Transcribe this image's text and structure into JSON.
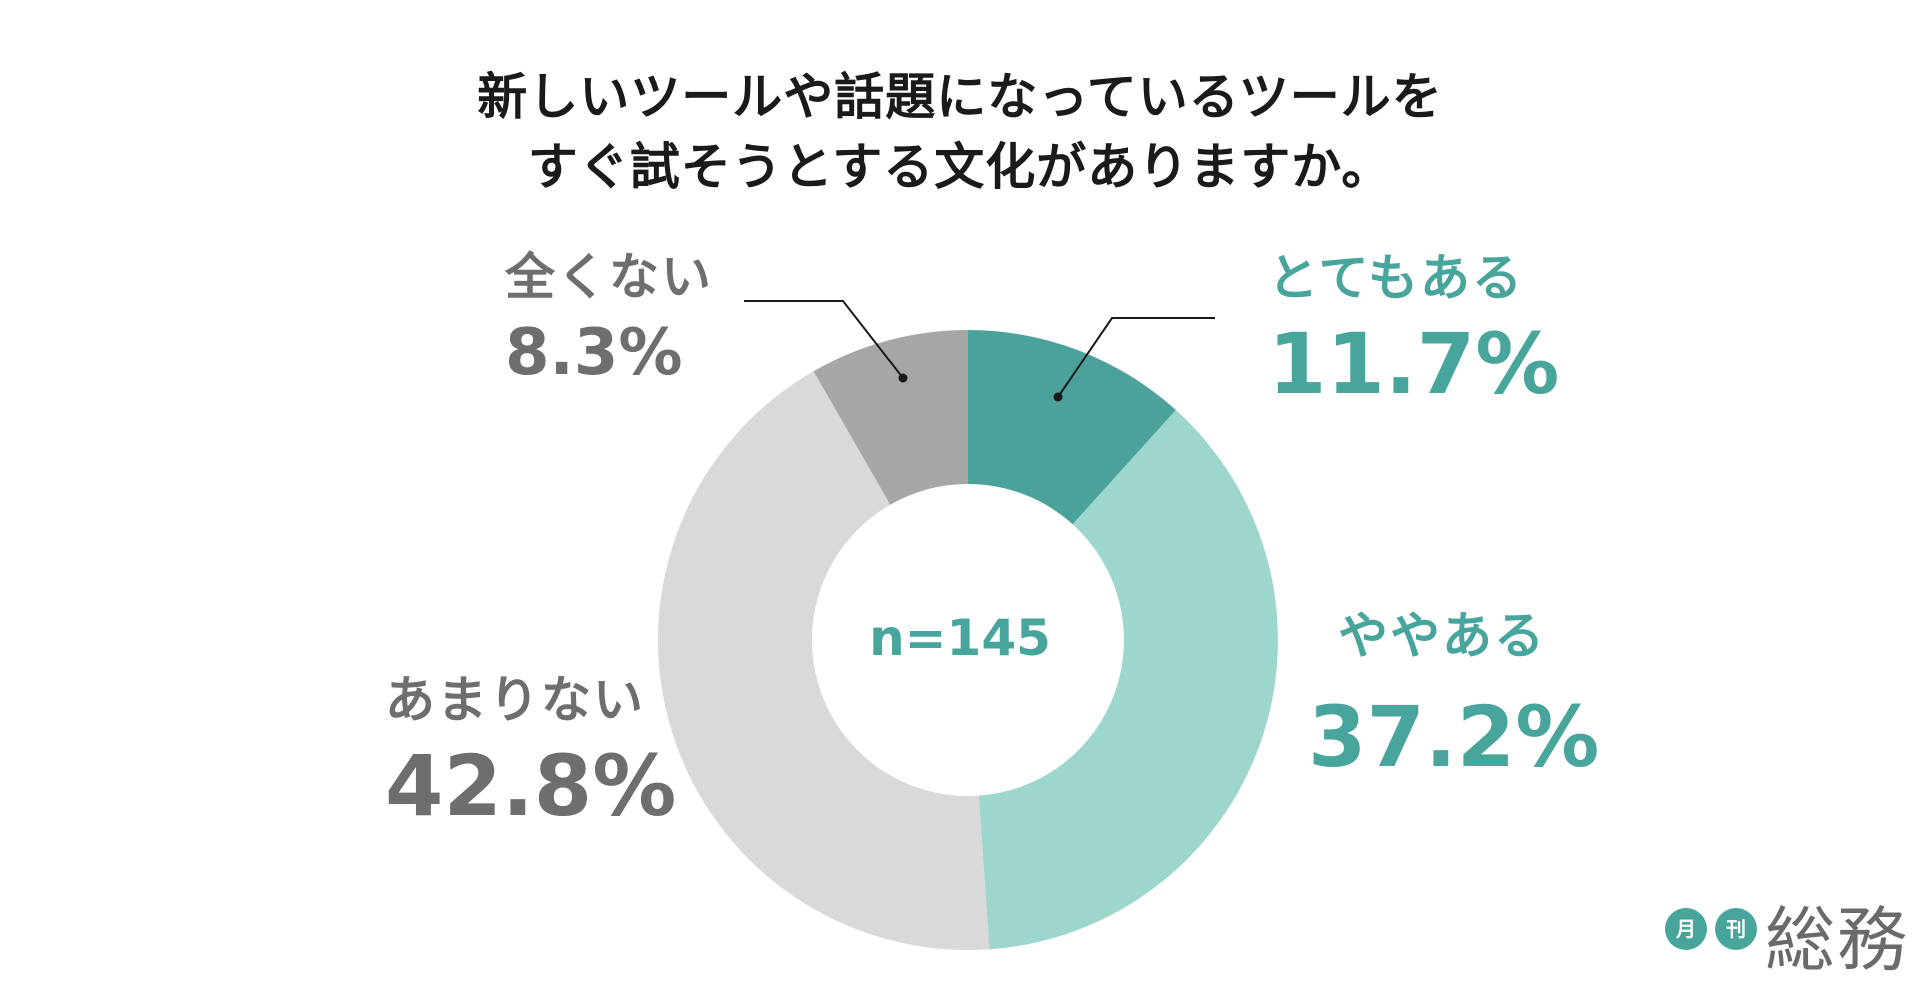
{
  "title": {
    "line1": "新しいツールや話題になっているツールを",
    "line2": "すぐ試そうとする文化がありますか。"
  },
  "center_label": "n=145",
  "logo": {
    "badge1": "月",
    "badge2": "刊",
    "name": "総務"
  },
  "colors": {
    "teal_dark": "#4aa29a",
    "teal_light": "#9dd6cd",
    "grey_light": "#d9d9d9",
    "grey_mid": "#a6a6a6",
    "label_teal": "#47a59b",
    "label_grey": "#6e6e6e"
  },
  "chart_data": {
    "type": "pie",
    "style": "donut",
    "title": "新しいツールや話題になっているツールをすぐ試そうとする文化がありますか。",
    "sample_size": "n=145",
    "categories": [
      "とてもある",
      "ややある",
      "あまりない",
      "全くない"
    ],
    "values": [
      11.7,
      37.2,
      42.8,
      8.3
    ],
    "value_labels": [
      "11.7%",
      "37.2%",
      "42.8%",
      "8.3%"
    ],
    "unit": "%",
    "colors": [
      "#4aa29a",
      "#9dd6cd",
      "#d9d9d9",
      "#a6a6a6"
    ],
    "start": "12 o'clock",
    "direction": "clockwise"
  }
}
